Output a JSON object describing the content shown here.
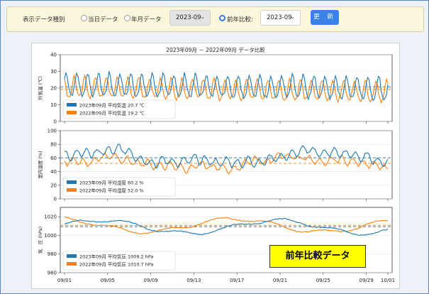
{
  "toolbar": {
    "data_type_label": "表示データ種別",
    "radio_daily_label": "当日データ",
    "radio_monthly_label": "年月データ",
    "month_select_value": "2023-09",
    "radio_compare_label": "前年比較:",
    "compare_select_value": "2023-09",
    "update_button_label": "更 新"
  },
  "badge_text": "前年比較データ",
  "colors": {
    "series_2023": "#1f77b4",
    "series_2022": "#ff7f0e"
  },
  "chart_data": [
    {
      "type": "line",
      "title": "2023年09月 － 2022年09月 データ比較",
      "ylabel": "外気温 (℃)",
      "ylim": [
        0,
        40
      ],
      "yticks": [
        "0",
        "10",
        "20",
        "30",
        "40"
      ],
      "series": [
        {
          "name": "2023年09月 平均気温 20.7 ℃",
          "mean": 20.7
        },
        {
          "name": "2022年09月 平均気温 19.2 ℃",
          "mean": 19.2
        }
      ]
    },
    {
      "type": "line",
      "ylabel": "室内湿度 (%)",
      "ylim": [
        0,
        100
      ],
      "yticks": [
        "0",
        "20",
        "40",
        "60",
        "80",
        "100"
      ],
      "series": [
        {
          "name": "2023年09月 平均湿度 60.2 %",
          "mean": 60.2
        },
        {
          "name": "2022年09月 平均湿度 52.0 %",
          "mean": 52.0
        }
      ]
    },
    {
      "type": "line",
      "ylabel": "気　圧 (hPa)",
      "ylim": [
        960,
        1030
      ],
      "yticks": [
        "960",
        "980",
        "1000",
        "1020"
      ],
      "series": [
        {
          "name": "2023年09月 平均気圧 1009.2 hPa",
          "mean": 1009.2
        },
        {
          "name": "2022年09月 平均気圧 1010.7 hPa",
          "mean": 1010.7
        }
      ]
    }
  ],
  "x_ticks": [
    "09/01",
    "09/05",
    "09/09",
    "09/13",
    "09/17",
    "09/21",
    "09/25",
    "09/29",
    "10/01"
  ]
}
